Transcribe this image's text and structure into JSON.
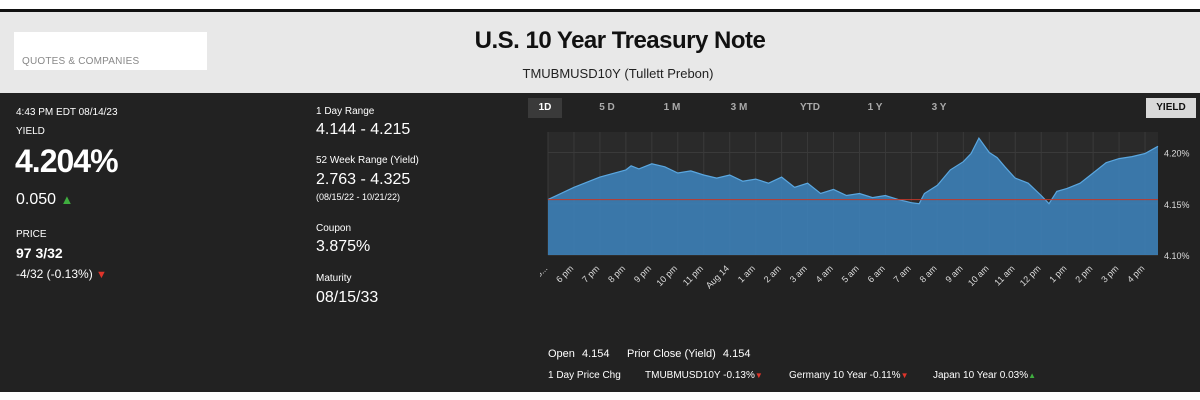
{
  "header": {
    "search_placeholder": "QUOTES & COMPANIES",
    "title": "U.S. 10 Year Treasury Note",
    "subtitle": "TMUBMUSD10Y (Tullett Prebon)"
  },
  "quote": {
    "timestamp": "4:43 PM EDT 08/14/23",
    "yield_label": "YIELD",
    "yield_value": "4.204%",
    "yield_change": "0.050",
    "price_label": "PRICE",
    "price_value": "97 3/32",
    "price_change": "-4/32 (-0.13%)"
  },
  "stats": {
    "day_range_label": "1 Day Range",
    "day_range_value": "4.144 - 4.215",
    "week52_label": "52 Week Range (Yield)",
    "week52_value": "2.763 - 4.325",
    "week52_dates": "(08/15/22 - 10/21/22)",
    "coupon_label": "Coupon",
    "coupon_value": "3.875%",
    "maturity_label": "Maturity",
    "maturity_value": "08/15/33"
  },
  "tabs": [
    {
      "label": "1D",
      "active": true
    },
    {
      "label": "5 D",
      "active": false
    },
    {
      "label": "1 M",
      "active": false
    },
    {
      "label": "3 M",
      "active": false
    },
    {
      "label": "YTD",
      "active": false
    },
    {
      "label": "1 Y",
      "active": false
    },
    {
      "label": "3 Y",
      "active": false
    }
  ],
  "yield_toggle": "YIELD",
  "footer": {
    "open_label": "Open",
    "open_value": "4.154",
    "prior_close_label": "Prior Close (Yield)",
    "prior_close_value": "4.154",
    "price_chg_label": "1 Day Price Chg",
    "comparisons": [
      {
        "name": "TMUBMUSD10Y",
        "value": "-0.13%",
        "direction": "down"
      },
      {
        "name": "Germany 10 Year",
        "value": "-0.11%",
        "direction": "down"
      },
      {
        "name": "Japan 10 Year",
        "value": "0.03%",
        "direction": "up"
      }
    ]
  },
  "colors": {
    "up": "#3fae3f",
    "down": "#e0342a",
    "area_fill": "#3d85c0",
    "prior_close_line": "#c0392b"
  },
  "chart_data": {
    "type": "area",
    "y_ticks": [
      "4.20%",
      "4.15%",
      "4.10%"
    ],
    "ylim": [
      4.1,
      4.22
    ],
    "x_tick_labels": [
      "5...",
      "6 pm",
      "7 pm",
      "8 pm",
      "9 pm",
      "10 pm",
      "11 pm",
      "Aug 14",
      "1 am",
      "2 am",
      "3 am",
      "4 am",
      "5 am",
      "6 am",
      "7 am",
      "8 am",
      "9 am",
      "10 am",
      "11 am",
      "12 pm",
      "1 pm",
      "2 pm",
      "3 pm",
      "4 pm"
    ],
    "prior_close": 4.154,
    "x": [
      0,
      1,
      2,
      3,
      3.2,
      3.5,
      4,
      4.5,
      5,
      5.5,
      6,
      6.5,
      7,
      7.5,
      8,
      8.5,
      9,
      9.5,
      10,
      10.5,
      11,
      11.5,
      12,
      12.5,
      13,
      13.5,
      14,
      14.3,
      14.5,
      15,
      15.5,
      16,
      16.3,
      16.6,
      17,
      17.3,
      17.6,
      18,
      18.5,
      19,
      19.3,
      19.6,
      20,
      20.5,
      21,
      21.5,
      22,
      22.5,
      23,
      23.5
    ],
    "values": [
      4.154,
      4.166,
      4.176,
      4.183,
      4.187,
      4.184,
      4.189,
      4.186,
      4.18,
      4.182,
      4.178,
      4.175,
      4.178,
      4.172,
      4.174,
      4.17,
      4.176,
      4.166,
      4.17,
      4.16,
      4.164,
      4.158,
      4.16,
      4.156,
      4.158,
      4.154,
      4.151,
      4.15,
      4.16,
      4.168,
      4.183,
      4.191,
      4.199,
      4.214,
      4.2,
      4.195,
      4.186,
      4.175,
      4.17,
      4.158,
      4.15,
      4.162,
      4.165,
      4.17,
      4.18,
      4.19,
      4.194,
      4.196,
      4.199,
      4.206
    ]
  }
}
